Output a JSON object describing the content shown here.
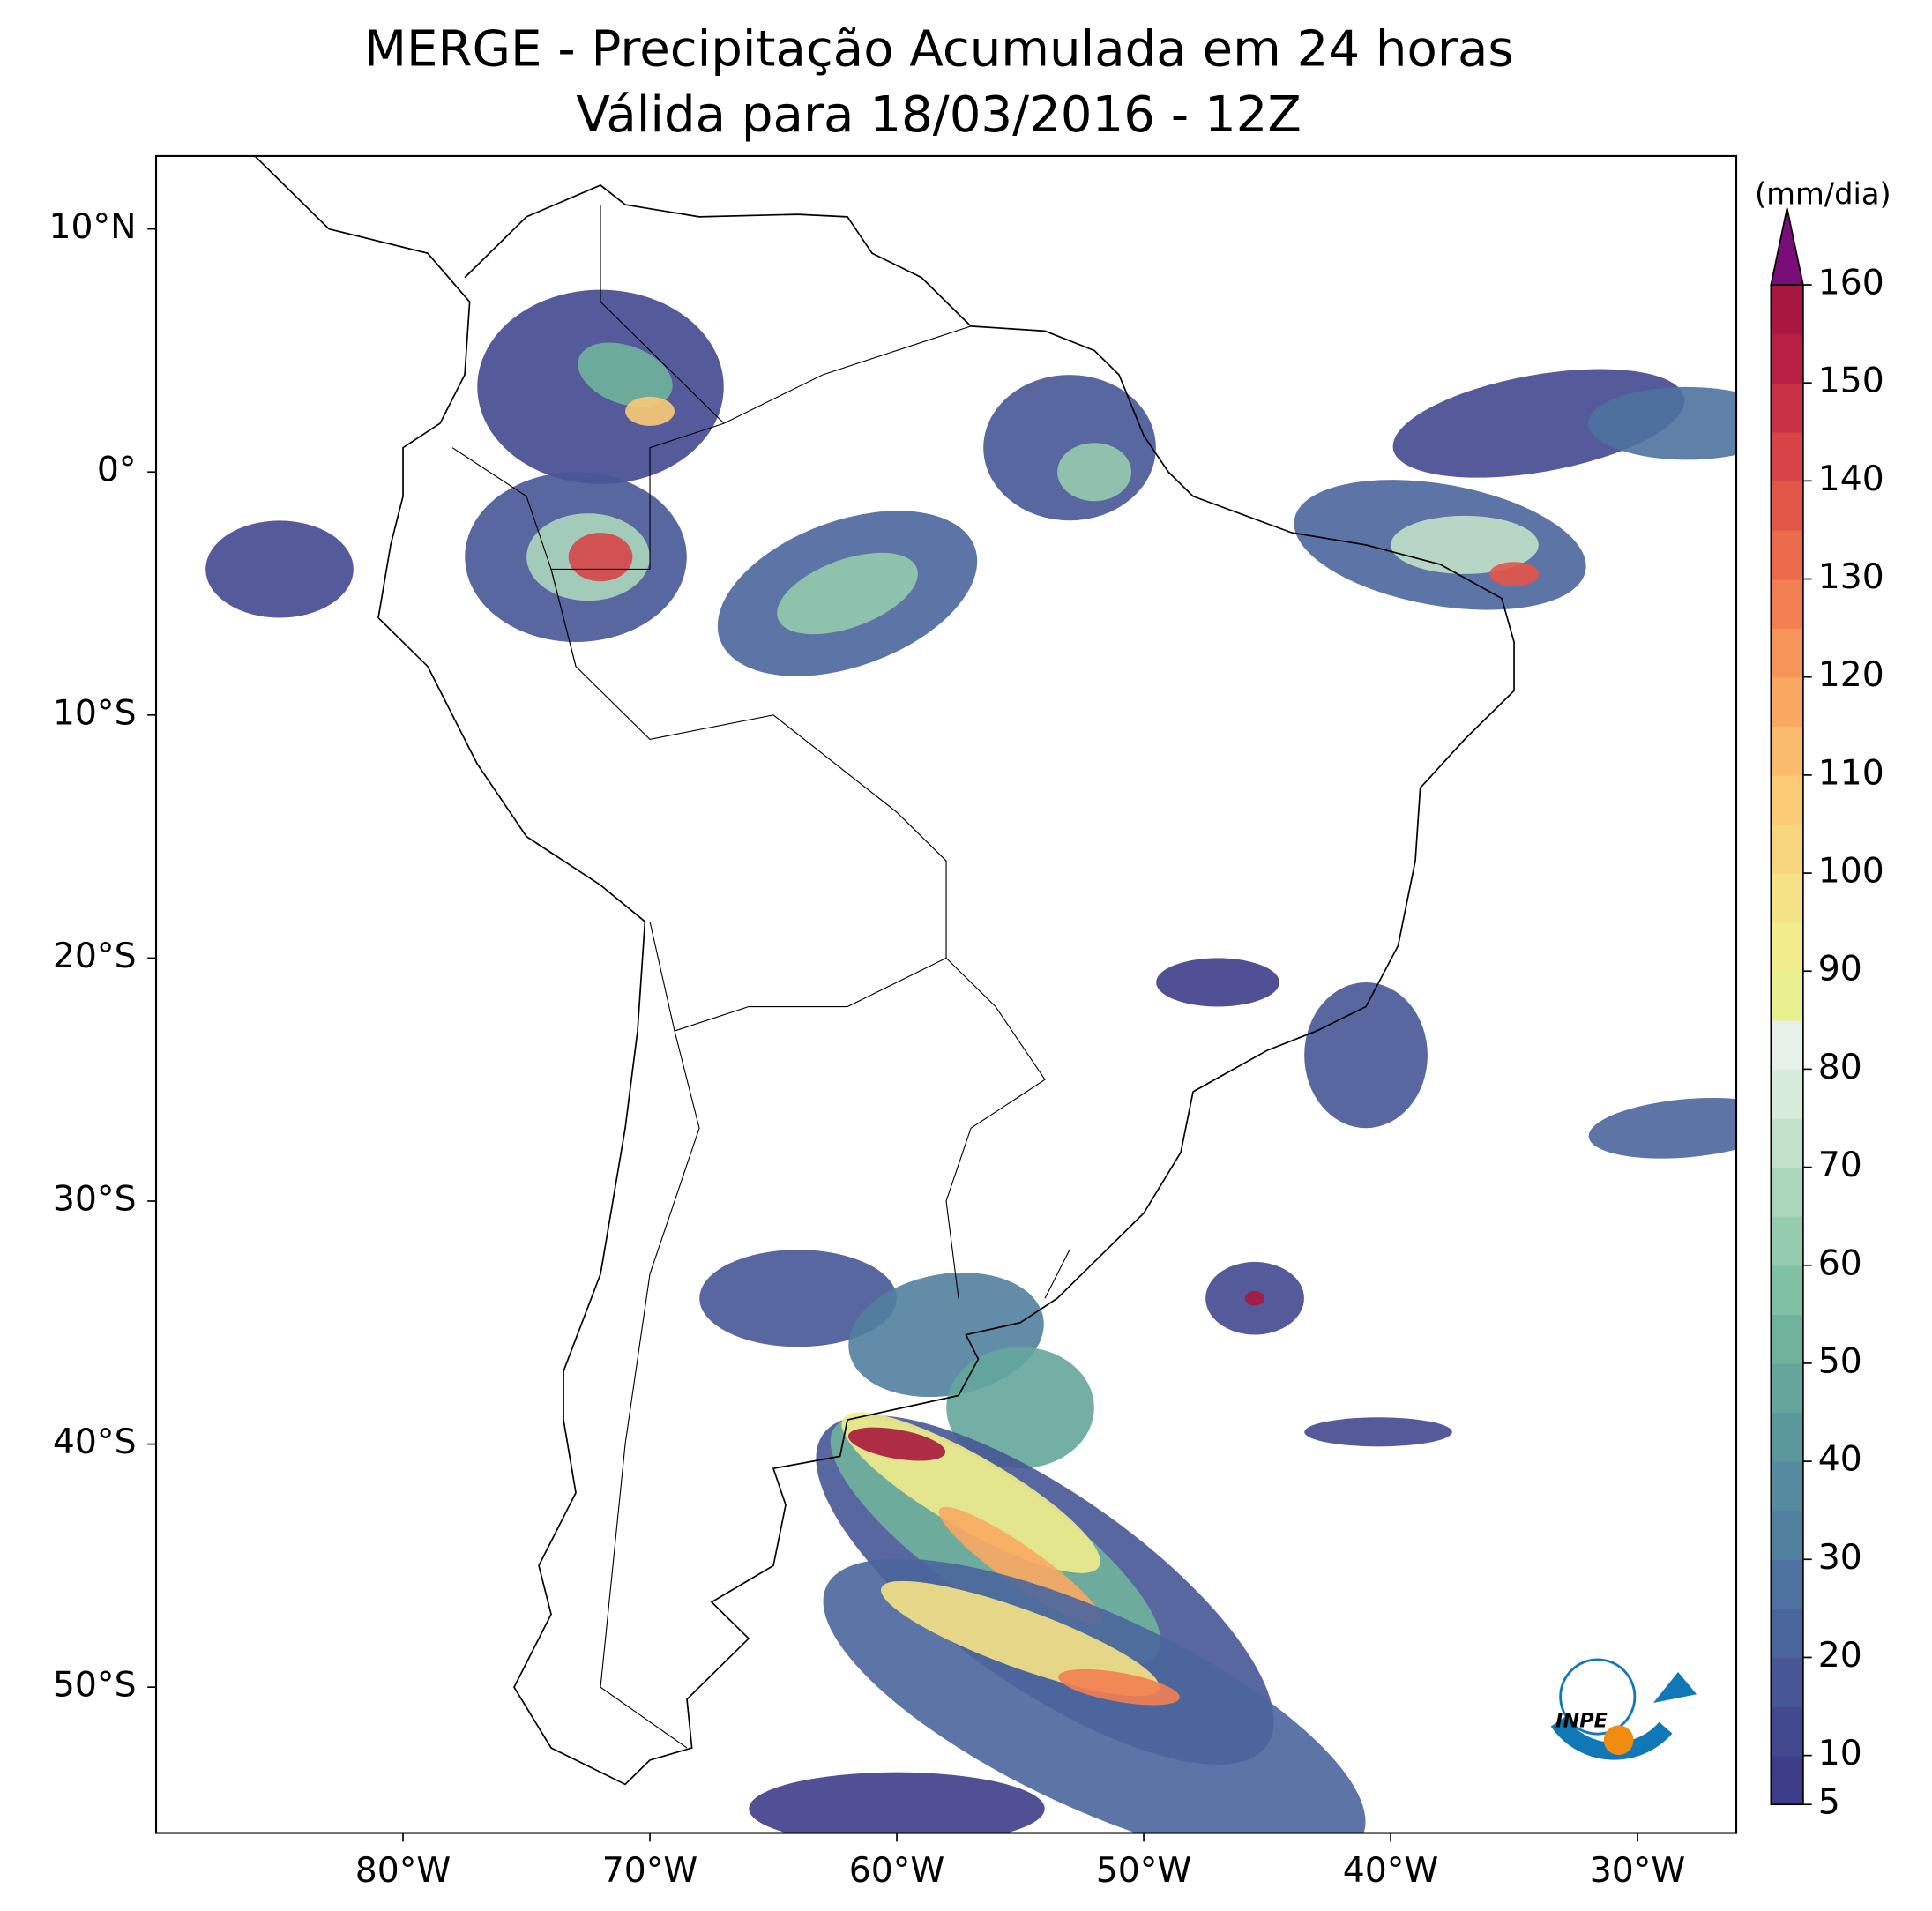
{
  "title": "MERGE - Precipitação Acumulada em 24 horas",
  "subtitle": "Válida para 18/03/2016 - 12Z",
  "map": {
    "xlim": [
      -90,
      -26
    ],
    "ylim": [
      -56,
      13
    ],
    "xticks": [
      {
        "value": -80,
        "label": "80°W"
      },
      {
        "value": -70,
        "label": "70°W"
      },
      {
        "value": -60,
        "label": "60°W"
      },
      {
        "value": -50,
        "label": "50°W"
      },
      {
        "value": -40,
        "label": "40°W"
      },
      {
        "value": -30,
        "label": "30°W"
      }
    ],
    "yticks": [
      {
        "value": 10,
        "label": "10°N"
      },
      {
        "value": 0,
        "label": "0°"
      },
      {
        "value": -10,
        "label": "10°S"
      },
      {
        "value": -20,
        "label": "20°S"
      },
      {
        "value": -30,
        "label": "30°S"
      },
      {
        "value": -40,
        "label": "40°S"
      },
      {
        "value": -50,
        "label": "50°S"
      }
    ]
  },
  "colorbar": {
    "label": "(mm/dia)",
    "lim": [
      5,
      160
    ],
    "ticks": [
      5,
      10,
      20,
      30,
      40,
      50,
      60,
      70,
      80,
      90,
      100,
      110,
      120,
      130,
      140,
      150,
      160
    ],
    "colors": [
      "#3e3d8a",
      "#43498f",
      "#475796",
      "#4a659c",
      "#4e72a0",
      "#51809f",
      "#548b9e",
      "#5b989c",
      "#64a69b",
      "#6fb39c",
      "#80c0a4",
      "#95cbae",
      "#aad6bb",
      "#c1e1ca",
      "#d6ebda",
      "#e6f2e8",
      "#e8f08f",
      "#f1ec8c",
      "#f6e286",
      "#f8d67e",
      "#fbca75",
      "#fbbb6c",
      "#f9a862",
      "#f69459",
      "#f27f51",
      "#eb6a4b",
      "#e25648",
      "#d74447",
      "#c93146",
      "#b91f44",
      "#a8173f"
    ],
    "extend_color": "#7a0d78"
  },
  "logo": "INPE"
}
